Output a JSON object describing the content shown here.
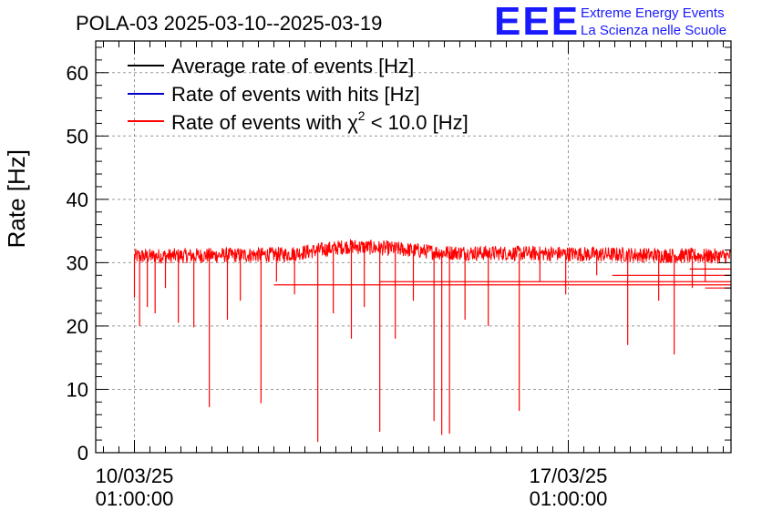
{
  "chart_data": {
    "type": "line",
    "title": "POLA-03 2025-03-10--2025-03-19",
    "ylabel": "Rate [Hz]",
    "xlabel": "",
    "ylim": [
      0,
      65
    ],
    "xlim": [
      "2025-03-09 10:00:00",
      "2025-03-19 16:00:00"
    ],
    "yticks": [
      0,
      10,
      20,
      30,
      40,
      50,
      60
    ],
    "xticks": [
      {
        "x": "2025-03-10 01:00:00",
        "label_line1": "10/03/25",
        "label_line2": "01:00:00"
      },
      {
        "x": "2025-03-17 01:00:00",
        "label_line1": "17/03/25",
        "label_line2": "01:00:00"
      }
    ],
    "grid": true,
    "legend_position": "top-left",
    "legend": [
      {
        "label": "Average rate of events [Hz]",
        "color": "#000000"
      },
      {
        "label": "Rate of events with hits [Hz]",
        "color": "#0000cc"
      },
      {
        "label_prefix": "Rate of events with ",
        "label_symbol": "χ",
        "label_sup": "2",
        "label_suffix": " < 10.0 [Hz]",
        "color": "#ff0000"
      }
    ],
    "series": [
      {
        "name": "Rate of events with χ2 < 10.0 [Hz]",
        "color": "#ff0000",
        "x_start": "2025-03-10 01:00:00",
        "x_end": "2025-03-19 16:00:00",
        "baseline": [
          {
            "x": "2025-03-10 01:00:00",
            "y": 31.0
          },
          {
            "x": "2025-03-12 12:00:00",
            "y": 31.3
          },
          {
            "x": "2025-03-13 12:00:00",
            "y": 32.6
          },
          {
            "x": "2025-03-14 06:00:00",
            "y": 32.2
          },
          {
            "x": "2025-03-15 00:00:00",
            "y": 31.6
          },
          {
            "x": "2025-03-17 00:00:00",
            "y": 31.4
          },
          {
            "x": "2025-03-19 16:00:00",
            "y": 31.0
          }
        ],
        "noise_amplitude": 1.2,
        "dips": [
          {
            "x": "2025-03-10 01:00:00",
            "y": 24.5
          },
          {
            "x": "2025-03-10 03:00:00",
            "y": 20.0
          },
          {
            "x": "2025-03-10 06:00:00",
            "y": 23.0
          },
          {
            "x": "2025-03-10 09:00:00",
            "y": 22.0
          },
          {
            "x": "2025-03-10 13:00:00",
            "y": 26.0
          },
          {
            "x": "2025-03-10 18:00:00",
            "y": 20.5
          },
          {
            "x": "2025-03-11 00:00:00",
            "y": 19.8
          },
          {
            "x": "2025-03-11 06:00:00",
            "y": 7.2
          },
          {
            "x": "2025-03-11 13:00:00",
            "y": 21.0
          },
          {
            "x": "2025-03-11 18:00:00",
            "y": 24.0
          },
          {
            "x": "2025-03-12 02:00:00",
            "y": 7.8
          },
          {
            "x": "2025-03-12 08:00:00",
            "y": 27.0
          },
          {
            "x": "2025-03-12 15:00:00",
            "y": 25.0
          },
          {
            "x": "2025-03-13 00:00:00",
            "y": 1.7
          },
          {
            "x": "2025-03-13 06:00:00",
            "y": 22.0
          },
          {
            "x": "2025-03-13 13:00:00",
            "y": 18.0
          },
          {
            "x": "2025-03-13 18:00:00",
            "y": 23.0
          },
          {
            "x": "2025-03-14 00:00:00",
            "y": 3.3
          },
          {
            "x": "2025-03-14 06:00:00",
            "y": 18.0
          },
          {
            "x": "2025-03-14 13:00:00",
            "y": 24.0
          },
          {
            "x": "2025-03-14 21:00:00",
            "y": 5.0
          },
          {
            "x": "2025-03-15 00:00:00",
            "y": 2.8
          },
          {
            "x": "2025-03-15 03:00:00",
            "y": 3.0
          },
          {
            "x": "2025-03-15 09:00:00",
            "y": 21.0
          },
          {
            "x": "2025-03-15 18:00:00",
            "y": 20.0
          },
          {
            "x": "2025-03-16 06:00:00",
            "y": 6.6
          },
          {
            "x": "2025-03-16 14:00:00",
            "y": 27.0
          },
          {
            "x": "2025-03-17 00:00:00",
            "y": 25.0
          },
          {
            "x": "2025-03-17 12:00:00",
            "y": 28.0
          },
          {
            "x": "2025-03-18 00:00:00",
            "y": 17.0
          },
          {
            "x": "2025-03-18 12:00:00",
            "y": 24.0
          },
          {
            "x": "2025-03-18 18:00:00",
            "y": 15.5
          },
          {
            "x": "2025-03-19 01:00:00",
            "y": 26.0
          },
          {
            "x": "2025-03-19 06:00:00",
            "y": 27.0
          }
        ],
        "tail_segments": [
          {
            "x1": "2025-03-12 07:00:00",
            "x2": "2025-03-19 16:00:00",
            "y": 26.5
          },
          {
            "x1": "2025-03-19 06:00:00",
            "x2": "2025-03-19 16:00:00",
            "y": 26.0
          },
          {
            "x1": "2025-03-14 00:00:00",
            "x2": "2025-03-19 16:00:00",
            "y": 27.0
          },
          {
            "x1": "2025-03-17 18:00:00",
            "x2": "2025-03-19 16:00:00",
            "y": 28.0
          },
          {
            "x1": "2025-03-19 00:00:00",
            "x2": "2025-03-19 16:00:00",
            "y": 29.0
          }
        ]
      }
    ]
  },
  "logo": {
    "mark": "EEE",
    "line1": "Extreme Energy Events",
    "line2": "La Scienza nelle Scuole",
    "color": "#1a1aff"
  },
  "colors": {
    "axis": "#000000",
    "grid": "#999999",
    "series": "#ff0000"
  }
}
